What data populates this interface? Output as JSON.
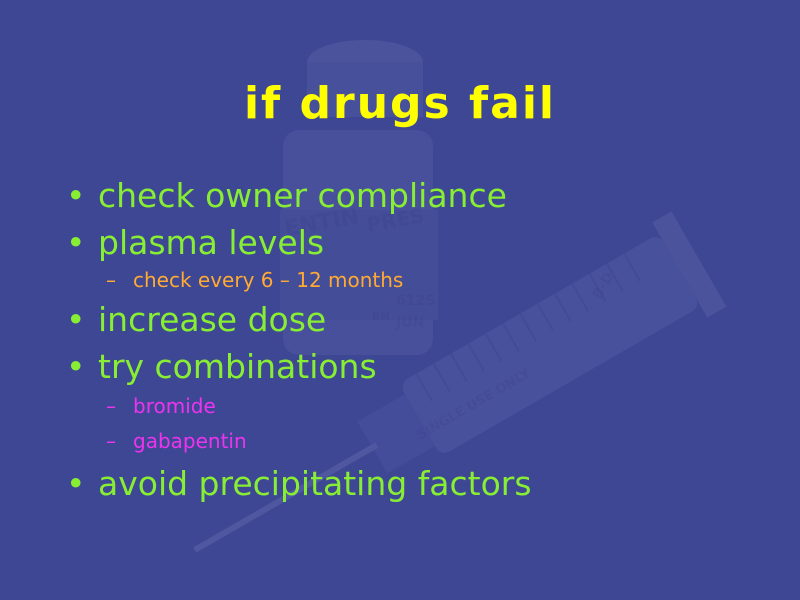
{
  "slide": {
    "title": "if drugs fail",
    "bullet_glyph": "•",
    "dash_glyph": "–",
    "items": [
      {
        "level": 1,
        "text": "check owner compliance"
      },
      {
        "level": 1,
        "text": "plasma levels"
      },
      {
        "level": 2,
        "text": "check every 6 – 12 months"
      },
      {
        "level": 1,
        "text": "increase dose"
      },
      {
        "level": 1,
        "text": "try combinations"
      },
      {
        "level": 2,
        "text": "bromide"
      },
      {
        "level": 2,
        "text": "gabapentin"
      },
      {
        "level": 1,
        "text": "avoid precipitating factors"
      }
    ],
    "background_image": {
      "label_text": [
        "ENTIN",
        "PRES",
        "BN",
        "612S",
        "JUN",
        "SINGLE USE ONLY",
        "B-D"
      ]
    }
  },
  "colors": {
    "background": "#3e4794",
    "title": "#ffff00",
    "level1": "#88ee33",
    "level2_first": "#ffaa33",
    "level2_second": "#ee33ee"
  }
}
